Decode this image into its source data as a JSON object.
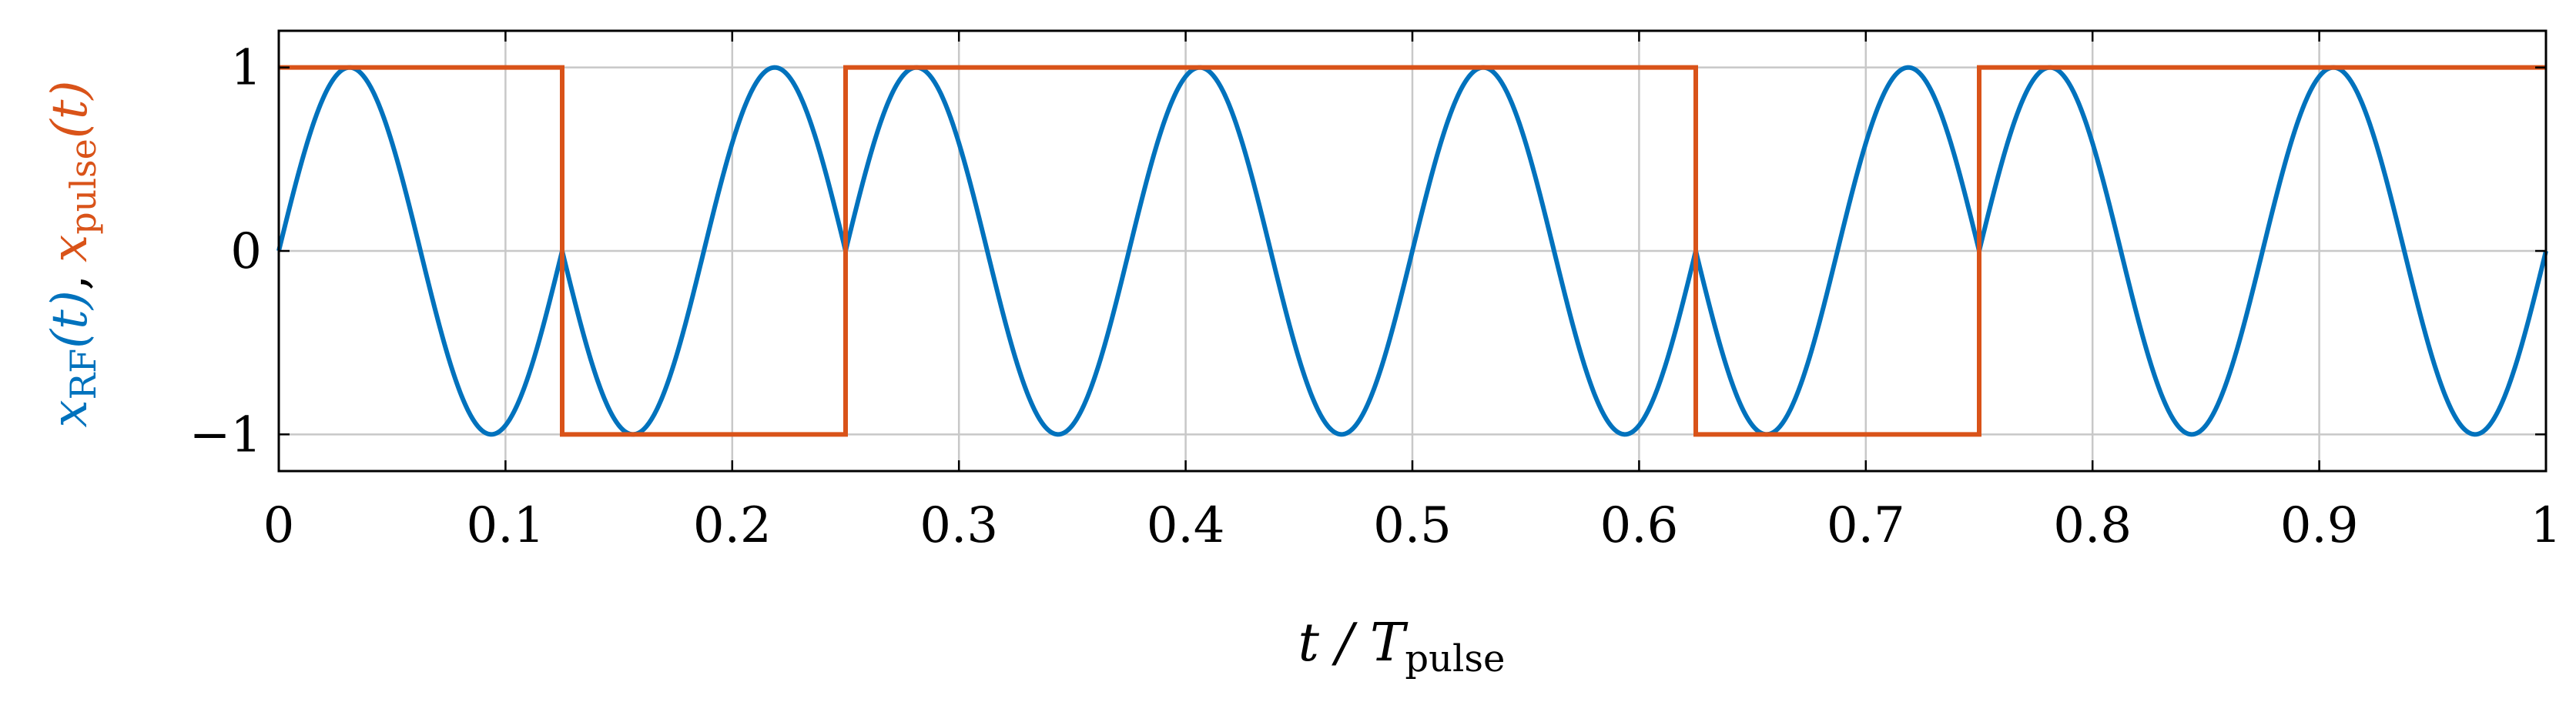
{
  "chart_data": {
    "type": "line",
    "xlabel": {
      "main": "t / T",
      "sub": "pulse"
    },
    "ylabel": {
      "rf": {
        "main": "x",
        "sub": "RF",
        "arg": "(t)"
      },
      "separator": ",",
      "pulse": {
        "main": "x",
        "sub": "pulse",
        "arg": "(t)"
      }
    },
    "xlim": [
      0,
      1
    ],
    "ylim": [
      -1.2,
      1.2
    ],
    "xticks": [
      0,
      0.1,
      0.2,
      0.3,
      0.4,
      0.5,
      0.6,
      0.7,
      0.8,
      0.9,
      1
    ],
    "xtick_labels": [
      "0",
      "0.1",
      "0.2",
      "0.3",
      "0.4",
      "0.5",
      "0.6",
      "0.7",
      "0.8",
      "0.9",
      "1"
    ],
    "yticks": [
      -1,
      0,
      1
    ],
    "ytick_labels": [
      "−1",
      "0",
      "1"
    ],
    "grid": true,
    "series": [
      {
        "name": "x_RF(t)",
        "color": "#0072BD",
        "function": "sin(2*pi*8*t) * pulse(t)",
        "cycles": 8
      },
      {
        "name": "x_pulse(t)",
        "color": "#D95319",
        "x": [
          0,
          0.125,
          0.125,
          0.25,
          0.25,
          0.625,
          0.625,
          0.75,
          0.75,
          1
        ],
        "y": [
          1,
          1,
          -1,
          -1,
          1,
          1,
          -1,
          -1,
          1,
          1
        ]
      }
    ]
  }
}
